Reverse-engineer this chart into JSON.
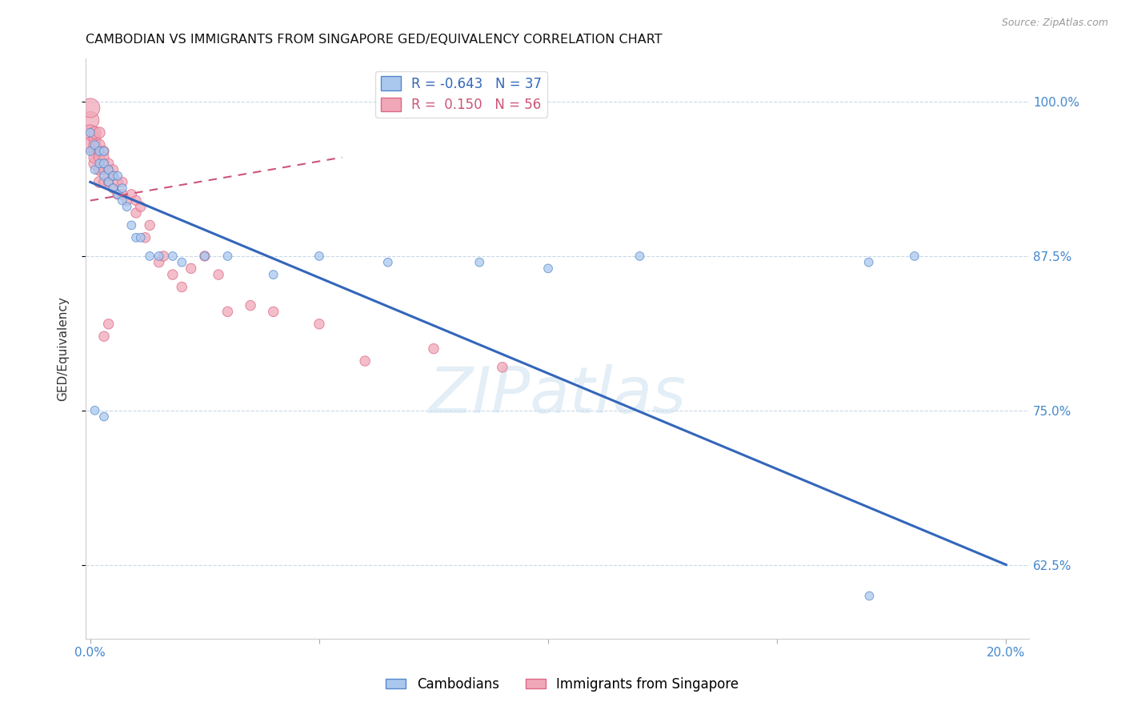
{
  "title": "CAMBODIAN VS IMMIGRANTS FROM SINGAPORE GED/EQUIVALENCY CORRELATION CHART",
  "source": "Source: ZipAtlas.com",
  "xmin": -0.001,
  "xmax": 0.205,
  "ymin": 0.565,
  "ymax": 1.035,
  "yticks": [
    0.625,
    0.75,
    0.875,
    1.0
  ],
  "ytick_labels": [
    "62.5%",
    "75.0%",
    "87.5%",
    "100.0%"
  ],
  "xticks": [
    0.0,
    0.05,
    0.1,
    0.15,
    0.2
  ],
  "xtick_labels": [
    "0.0%",
    "",
    "",
    "",
    "20.0%"
  ],
  "watermark": "ZIPatlas",
  "cambodians": {
    "color": "#aac8ee",
    "edge_color": "#5588cc",
    "trend_color": "#3366bb",
    "trend_x": [
      0.0,
      0.2
    ],
    "trend_y": [
      0.935,
      0.625
    ],
    "x": [
      0.0,
      0.0,
      0.001,
      0.001,
      0.002,
      0.002,
      0.003,
      0.003,
      0.003,
      0.004,
      0.004,
      0.005,
      0.005,
      0.006,
      0.006,
      0.007,
      0.007,
      0.008,
      0.009,
      0.01,
      0.011,
      0.013,
      0.015,
      0.018,
      0.02,
      0.025,
      0.03,
      0.04,
      0.05,
      0.065,
      0.085,
      0.1,
      0.12,
      0.17,
      0.18,
      0.003,
      0.001
    ],
    "y": [
      0.96,
      0.975,
      0.965,
      0.945,
      0.95,
      0.96,
      0.94,
      0.95,
      0.96,
      0.935,
      0.945,
      0.93,
      0.94,
      0.925,
      0.94,
      0.92,
      0.93,
      0.915,
      0.9,
      0.89,
      0.89,
      0.875,
      0.875,
      0.875,
      0.87,
      0.875,
      0.875,
      0.86,
      0.875,
      0.87,
      0.87,
      0.865,
      0.875,
      0.87,
      0.875,
      0.745,
      0.75
    ],
    "sizes": [
      60,
      60,
      60,
      60,
      60,
      60,
      60,
      60,
      60,
      60,
      60,
      60,
      60,
      60,
      60,
      60,
      60,
      60,
      60,
      60,
      60,
      60,
      60,
      60,
      60,
      60,
      60,
      60,
      60,
      60,
      60,
      60,
      60,
      60,
      60,
      60,
      60
    ]
  },
  "singapore": {
    "color": "#f0a8b8",
    "edge_color": "#dd6688",
    "trend_color": "#cc5577",
    "trend_style": "dashed",
    "trend_x": [
      0.0,
      0.055
    ],
    "trend_y": [
      0.92,
      0.955
    ],
    "x": [
      0.0,
      0.0,
      0.0,
      0.0,
      0.001,
      0.001,
      0.001,
      0.001,
      0.001,
      0.001,
      0.002,
      0.002,
      0.002,
      0.002,
      0.002,
      0.002,
      0.002,
      0.003,
      0.003,
      0.003,
      0.003,
      0.003,
      0.004,
      0.004,
      0.004,
      0.004,
      0.005,
      0.005,
      0.005,
      0.006,
      0.006,
      0.007,
      0.007,
      0.008,
      0.009,
      0.01,
      0.01,
      0.011,
      0.012,
      0.013,
      0.015,
      0.016,
      0.018,
      0.02,
      0.022,
      0.025,
      0.028,
      0.03,
      0.035,
      0.04,
      0.05,
      0.06,
      0.075,
      0.09,
      0.003,
      0.004
    ],
    "y": [
      0.985,
      0.975,
      0.965,
      0.995,
      0.97,
      0.96,
      0.95,
      0.965,
      0.975,
      0.955,
      0.96,
      0.955,
      0.945,
      0.965,
      0.975,
      0.945,
      0.935,
      0.95,
      0.945,
      0.935,
      0.96,
      0.955,
      0.945,
      0.935,
      0.95,
      0.94,
      0.94,
      0.93,
      0.945,
      0.925,
      0.935,
      0.925,
      0.935,
      0.92,
      0.925,
      0.91,
      0.92,
      0.915,
      0.89,
      0.9,
      0.87,
      0.875,
      0.86,
      0.85,
      0.865,
      0.875,
      0.86,
      0.83,
      0.835,
      0.83,
      0.82,
      0.79,
      0.8,
      0.785,
      0.81,
      0.82
    ],
    "sizes": [
      250,
      200,
      200,
      300,
      120,
      120,
      120,
      120,
      120,
      120,
      100,
      100,
      100,
      100,
      100,
      100,
      100,
      80,
      80,
      80,
      80,
      80,
      80,
      80,
      80,
      80,
      80,
      80,
      80,
      80,
      80,
      80,
      80,
      80,
      80,
      80,
      80,
      80,
      80,
      80,
      80,
      80,
      80,
      80,
      80,
      80,
      80,
      80,
      80,
      80,
      80,
      80,
      80,
      80,
      80,
      80
    ]
  },
  "cambodian_outlier": {
    "x": [
      0.17
    ],
    "y": [
      0.6
    ],
    "color": "#aac8ee",
    "edge_color": "#5588cc",
    "size": 60
  }
}
